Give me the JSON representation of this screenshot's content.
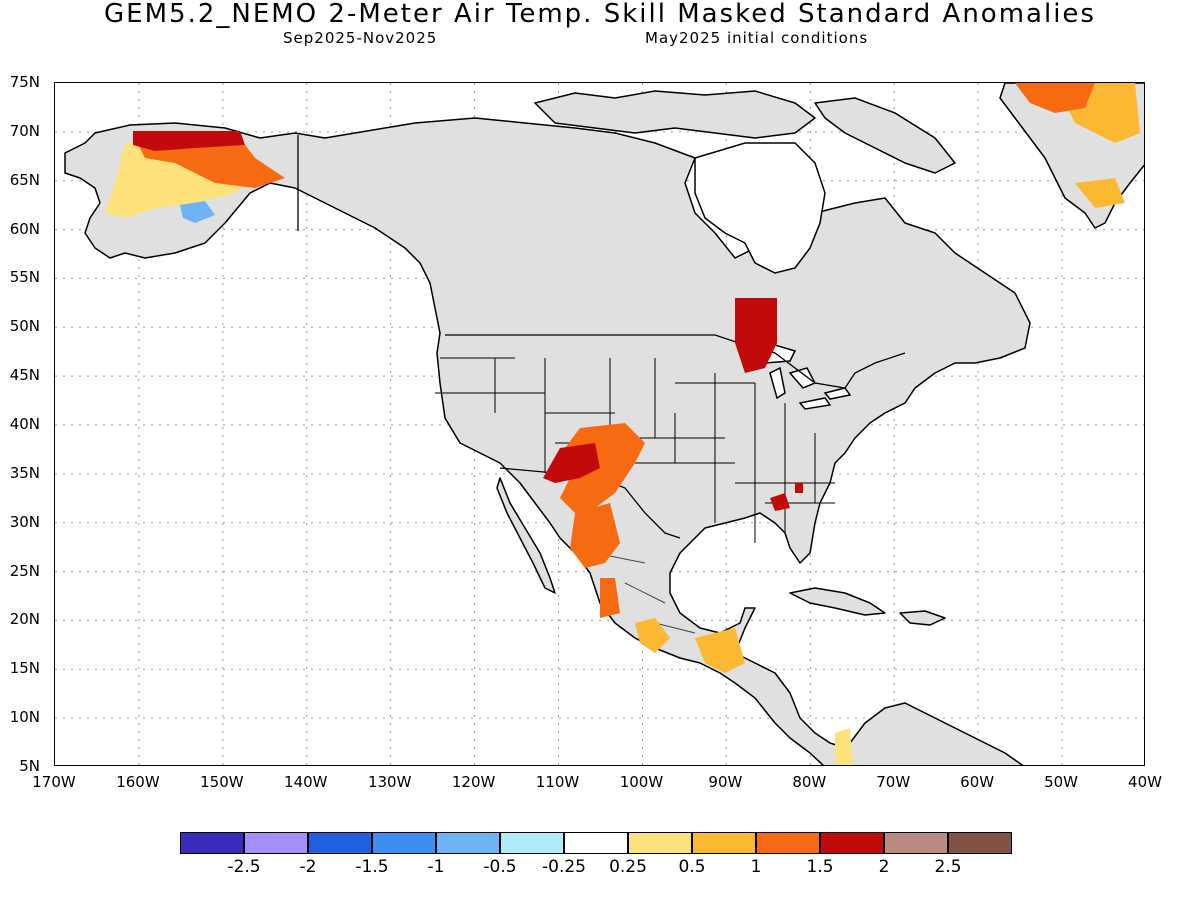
{
  "title": "GEM5.2_NEMO 2-Meter Air Temp. Skill Masked Standard Anomalies",
  "subtitle_left": "Sep2025-Nov2025",
  "subtitle_right": "May2025 initial conditions",
  "lat_labels": [
    "75N",
    "70N",
    "65N",
    "60N",
    "55N",
    "50N",
    "45N",
    "40N",
    "35N",
    "30N",
    "25N",
    "20N",
    "15N",
    "10N",
    "5N"
  ],
  "lon_labels": [
    "170W",
    "160W",
    "150W",
    "140W",
    "130W",
    "120W",
    "110W",
    "100W",
    "90W",
    "80W",
    "70W",
    "60W",
    "50W",
    "40W"
  ],
  "colorbar": {
    "colors": [
      "#3b2bbd",
      "#a48ff8",
      "#1f5fe0",
      "#3c8ef0",
      "#6eb4f5",
      "#aeecfa",
      "#ffffff",
      "#fde27c",
      "#fbb833",
      "#f66a12",
      "#c20a0a",
      "#b88a80",
      "#825244"
    ],
    "tick_labels": [
      "-2.5",
      "-2",
      "-1.5",
      "-1",
      "-0.5",
      "-0.25",
      "0.25",
      "0.5",
      "1",
      "1.5",
      "2",
      "2.5"
    ]
  },
  "map_colors": {
    "land_masked": "#e0e0e0",
    "coast": "#000000",
    "grid": "#999999"
  },
  "anomaly_regions": [
    {
      "name": "alaska-north",
      "level": "1.5",
      "color": "#f66a12"
    },
    {
      "name": "alaska-north-slope",
      "level": "2",
      "color": "#c20a0a"
    },
    {
      "name": "alaska-interior",
      "level": "0.5",
      "color": "#fde27c"
    },
    {
      "name": "alaska-southwest",
      "level": "-0.5",
      "color": "#6eb4f5"
    },
    {
      "name": "greenland",
      "level": "1",
      "color": "#fbb833"
    },
    {
      "name": "us-southwest",
      "level": "1.5",
      "color": "#f66a12"
    },
    {
      "name": "four-corners",
      "level": "2",
      "color": "#c20a0a"
    },
    {
      "name": "mexico-north",
      "level": "1.5",
      "color": "#f66a12"
    },
    {
      "name": "ontario",
      "level": "2",
      "color": "#c20a0a"
    },
    {
      "name": "yucatan",
      "level": "1",
      "color": "#fbb833"
    }
  ]
}
